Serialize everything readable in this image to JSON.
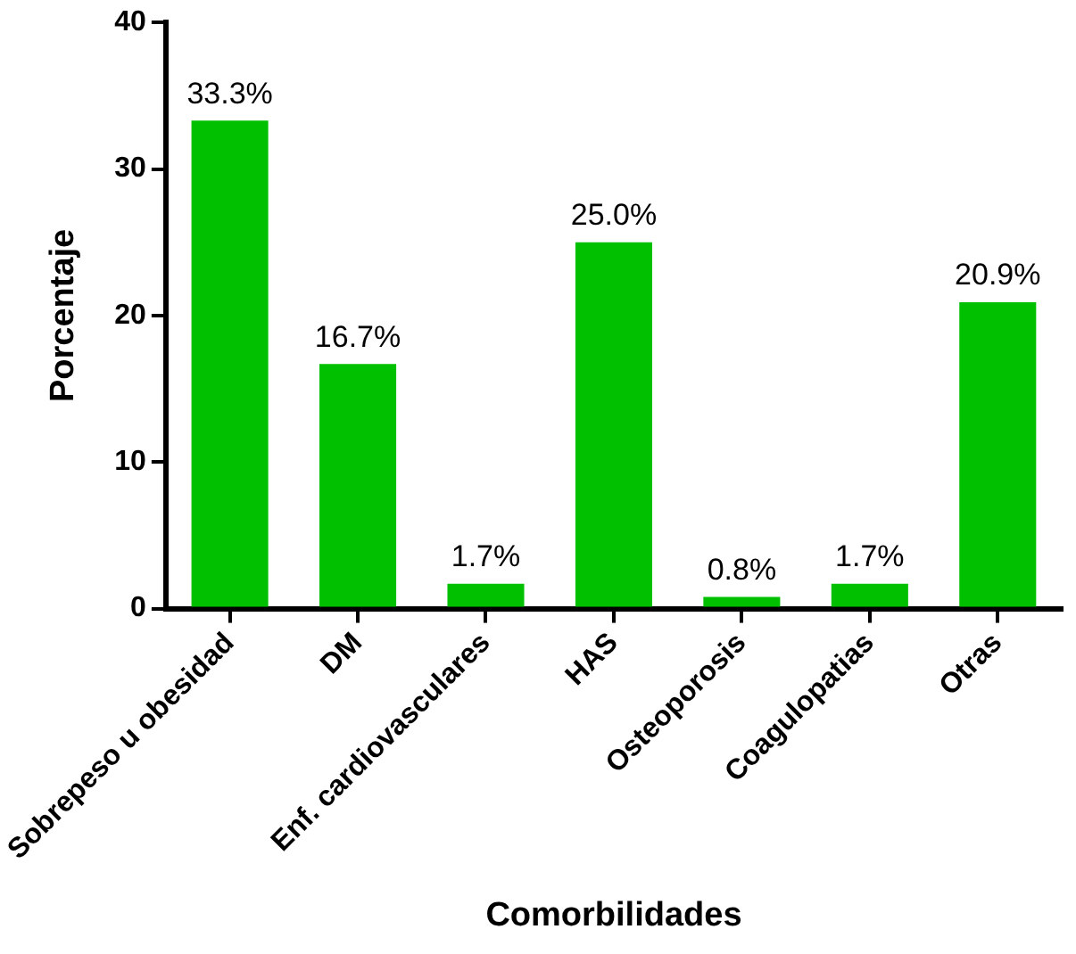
{
  "chart_data": {
    "type": "bar",
    "xlabel": "Comorbilidades",
    "ylabel": "Porcentaje",
    "categories": [
      "Sobrepeso u obesidad",
      "DM",
      "Enf. cardiovasculares",
      "HAS",
      "Osteoporosis",
      "Coagulopatias",
      "Otras"
    ],
    "values": [
      33.3,
      16.7,
      1.7,
      25.0,
      0.8,
      1.7,
      20.9
    ],
    "value_labels": [
      "33.3%",
      "16.7%",
      "1.7%",
      "25.0%",
      "0.8%",
      "1.7%",
      "20.9%"
    ],
    "color": "#00c000",
    "ylim": [
      0,
      40
    ],
    "yticks": [
      0,
      10,
      20,
      30,
      40
    ],
    "grid": false,
    "legend": false
  }
}
